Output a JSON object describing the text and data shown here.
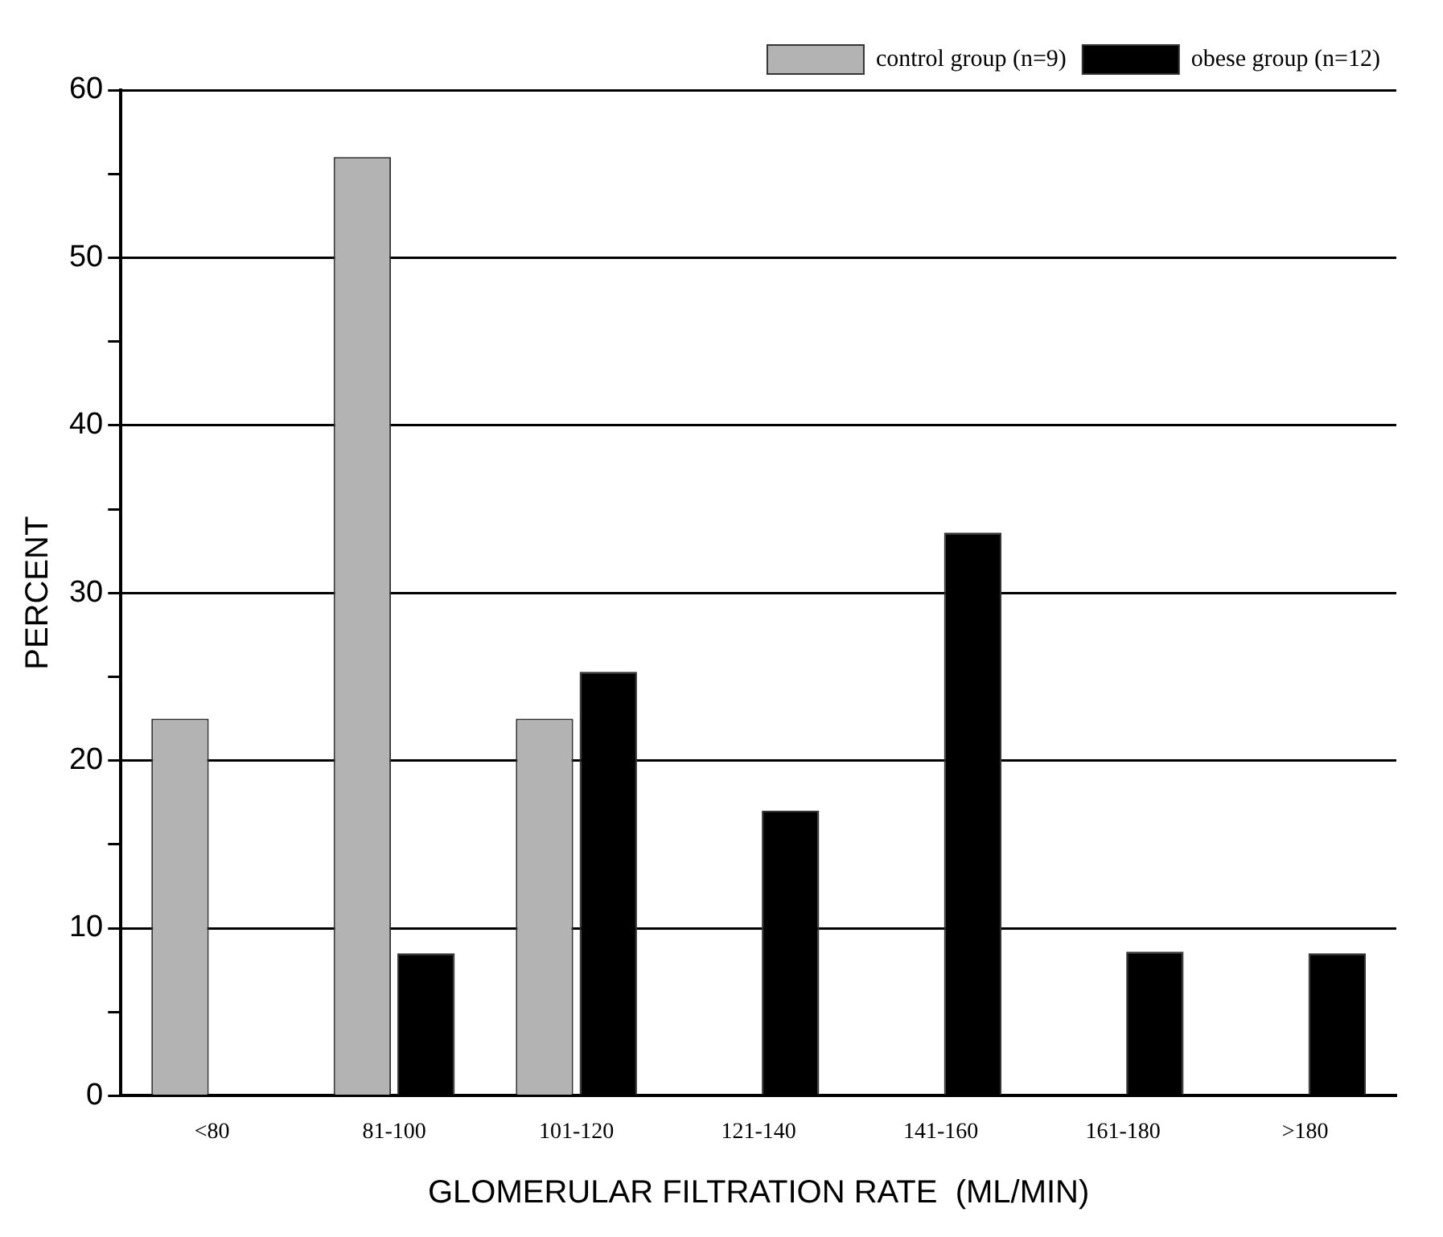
{
  "chart_data": {
    "type": "bar",
    "xlabel": "GLOMERULAR FILTRATION RATE  (ML/MIN)",
    "ylabel": "PERCENT",
    "categories": [
      "<80",
      "81-100",
      "101-120",
      "121-140",
      "141-160",
      "161-180",
      ">180"
    ],
    "series": [
      {
        "name": "control group (n=9)",
        "color": "#b3b3b3",
        "values": [
          22.5,
          56,
          22.5,
          null,
          null,
          null,
          null
        ]
      },
      {
        "name": "obese group (n=12)",
        "color": "#000000",
        "values": [
          null,
          8.5,
          25.3,
          17,
          33.6,
          8.6,
          8.5
        ]
      }
    ],
    "ylim": [
      0,
      60
    ],
    "yticks": [
      0,
      {
        "value": 5,
        "label": null
      },
      10,
      {
        "value": 15,
        "label": null
      },
      20,
      {
        "value": 25,
        "label": null
      },
      30,
      {
        "value": 35,
        "label": null
      },
      40,
      {
        "value": 45,
        "label": null
      },
      50,
      {
        "value": 55,
        "label": null
      },
      60
    ],
    "grid": "y",
    "legend": "top right"
  }
}
